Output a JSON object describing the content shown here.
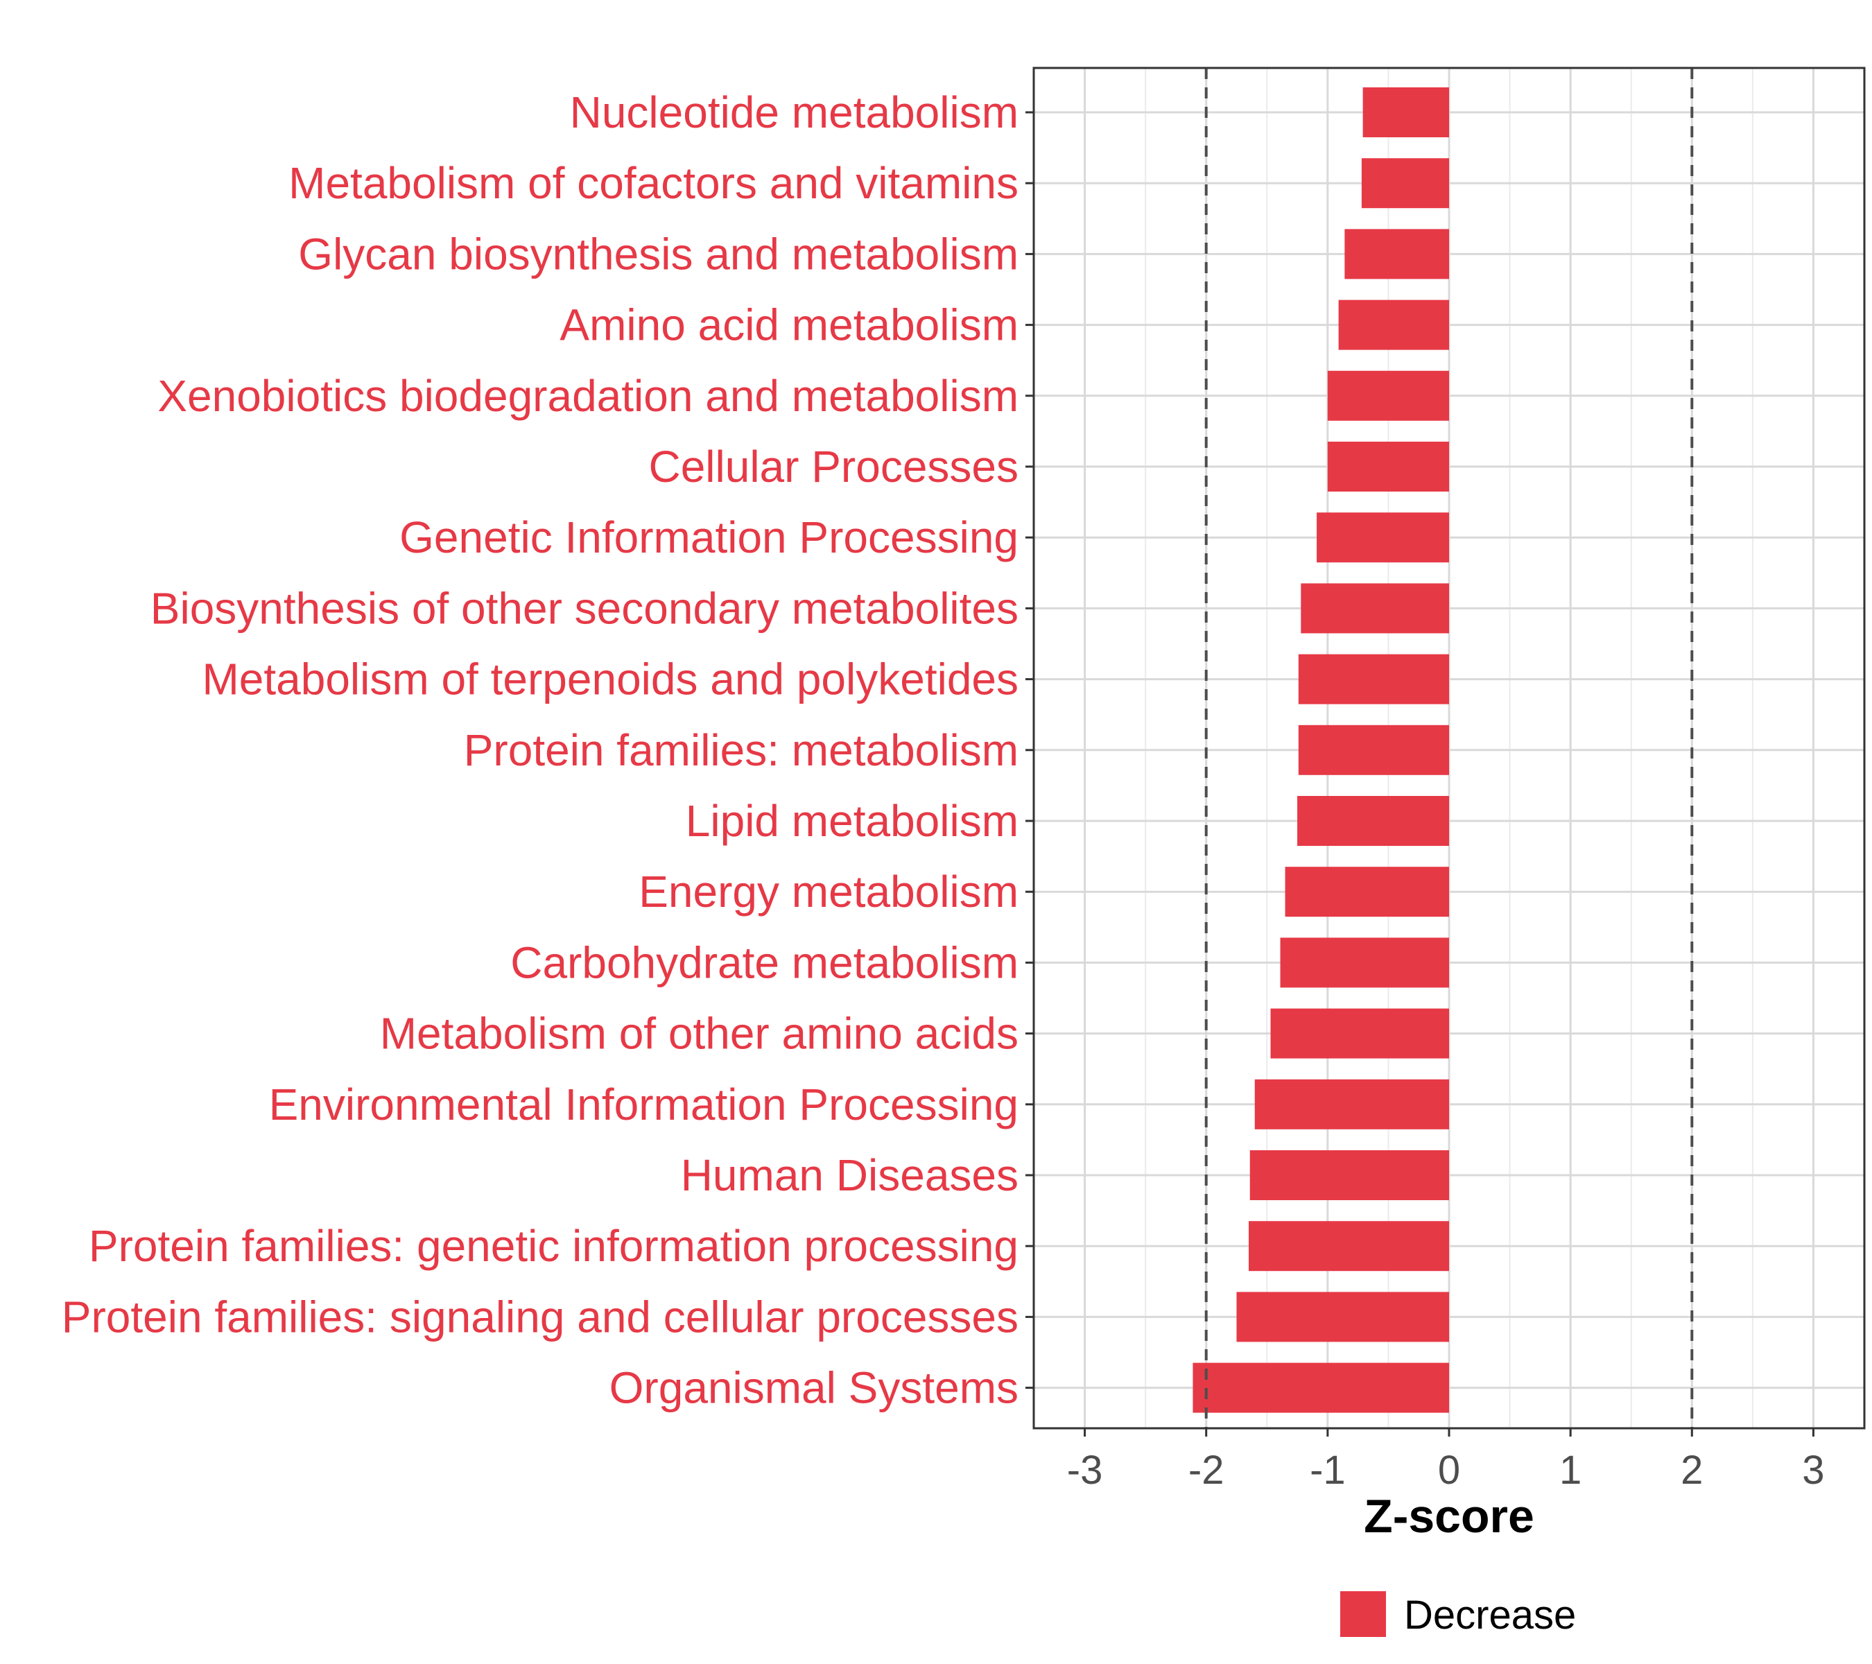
{
  "chart_data": {
    "type": "bar",
    "orientation": "horizontal",
    "categories": [
      "Nucleotide metabolism",
      "Metabolism of cofactors and vitamins",
      "Glycan biosynthesis and metabolism",
      "Amino acid metabolism",
      "Xenobiotics biodegradation and metabolism",
      "Cellular Processes",
      "Genetic Information Processing",
      "Biosynthesis of other secondary metabolites",
      "Metabolism of terpenoids and polyketides",
      "Protein families: metabolism",
      "Lipid metabolism",
      "Energy metabolism",
      "Carbohydrate metabolism",
      "Metabolism of other amino acids",
      "Environmental Information Processing",
      "Human Diseases",
      "Protein families: genetic information processing",
      "Protein families: signaling and cellular processes",
      "Organismal Systems"
    ],
    "values": [
      -0.71,
      -0.72,
      -0.86,
      -0.91,
      -1.0,
      -1.0,
      -1.09,
      -1.22,
      -1.24,
      -1.24,
      -1.25,
      -1.35,
      -1.39,
      -1.47,
      -1.6,
      -1.64,
      -1.65,
      -1.75,
      -2.11
    ],
    "series": [
      {
        "name": "Decrease",
        "color": "#e63946"
      }
    ],
    "xlabel": "Z-score",
    "ylabel": "",
    "xlim": [
      -3.42,
      3.42
    ],
    "xticks": [
      -3,
      -2,
      -1,
      0,
      1,
      2,
      3
    ],
    "xtick_labels": [
      "-3",
      "-2",
      "-1",
      "0",
      "1",
      "2",
      "3"
    ],
    "reference_lines": [
      -2,
      2
    ],
    "grid": true,
    "legend": {
      "position": "bottom",
      "entries": [
        {
          "label": "Decrease",
          "color": "#e63946"
        }
      ]
    },
    "label_color": "#e63946"
  }
}
